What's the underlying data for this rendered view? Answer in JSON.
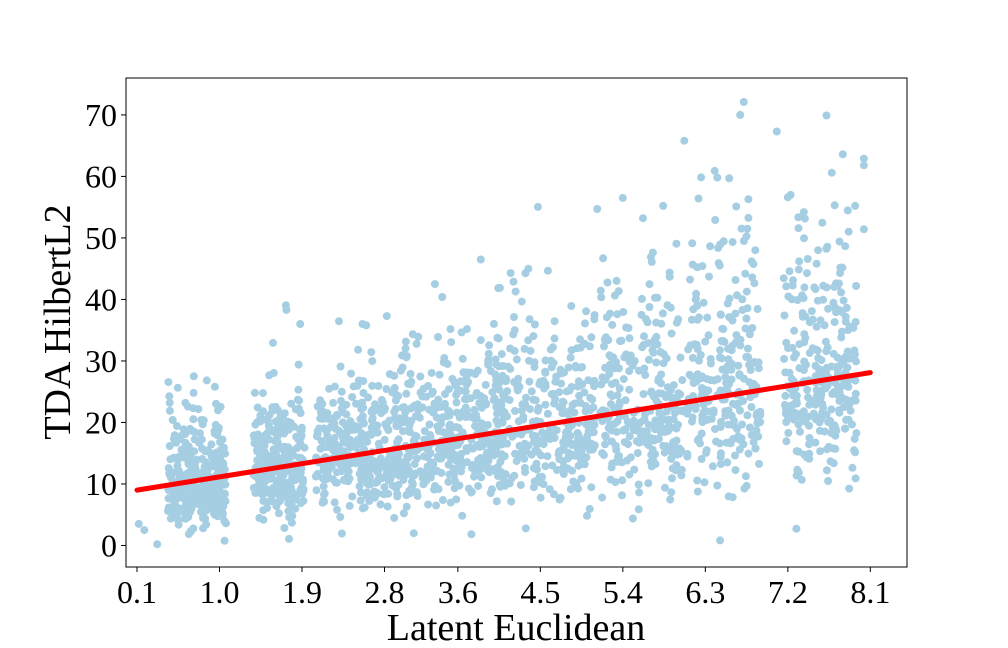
{
  "chart_data": {
    "type": "scatter",
    "title": "",
    "xlabel": "Latent Euclidean",
    "ylabel": "TDA HilbertL2",
    "xlim": [
      -0.02,
      8.5
    ],
    "ylim": [
      -3.5,
      76
    ],
    "x_ticks": [
      0.1,
      1.0,
      1.9,
      2.8,
      3.6,
      4.5,
      5.4,
      6.3,
      7.2,
      8.1
    ],
    "x_tick_labels": [
      "0.1",
      "1.0",
      "1.9",
      "2.8",
      "3.6",
      "4.5",
      "5.4",
      "6.3",
      "7.2",
      "8.1"
    ],
    "y_ticks": [
      0,
      10,
      20,
      30,
      40,
      50,
      60,
      70
    ],
    "y_tick_labels": [
      "0",
      "10",
      "20",
      "30",
      "40",
      "50",
      "60",
      "70"
    ],
    "grid": false,
    "legend": "none",
    "series": [
      {
        "kind": "scatter",
        "color": "#a6cee3",
        "clusters": [
          {
            "x_center": 0.75,
            "x_spread": 0.32,
            "y_mean": 10,
            "y_sd": 5,
            "count": 320
          },
          {
            "x_center": 1.65,
            "x_spread": 0.28,
            "y_mean": 13,
            "y_sd": 6,
            "count": 280
          },
          {
            "x_center": 2.55,
            "x_spread": 0.5,
            "y_mean": 15,
            "y_sd": 6,
            "count": 340
          },
          {
            "x_center": 3.55,
            "x_spread": 0.55,
            "y_mean": 17,
            "y_sd": 7,
            "count": 360
          },
          {
            "x_center": 4.55,
            "x_spread": 0.55,
            "y_mean": 19,
            "y_sd": 8,
            "count": 340
          },
          {
            "x_center": 5.6,
            "x_spread": 0.45,
            "y_mean": 22,
            "y_sd": 9,
            "count": 280
          },
          {
            "x_center": 6.5,
            "x_spread": 0.4,
            "y_mean": 25,
            "y_sd": 11,
            "count": 250
          },
          {
            "x_center": 7.55,
            "x_spread": 0.4,
            "y_mean": 27,
            "y_sd": 11,
            "count": 280
          }
        ],
        "outliers": [
          {
            "x": 6.72,
            "y": 72.1
          },
          {
            "x": 6.68,
            "y": 70.0
          },
          {
            "x": 7.08,
            "y": 67.3
          },
          {
            "x": 6.07,
            "y": 65.8
          },
          {
            "x": 7.8,
            "y": 63.6
          },
          {
            "x": 8.03,
            "y": 62.9
          },
          {
            "x": 8.03,
            "y": 61.8
          },
          {
            "x": 7.68,
            "y": 60.6
          },
          {
            "x": 6.43,
            "y": 59.8
          },
          {
            "x": 6.56,
            "y": 59.7
          },
          {
            "x": 7.23,
            "y": 57.0
          },
          {
            "x": 7.2,
            "y": 56.6
          },
          {
            "x": 5.4,
            "y": 56.5
          },
          {
            "x": 6.77,
            "y": 56.3
          },
          {
            "x": 5.84,
            "y": 55.2
          },
          {
            "x": 5.12,
            "y": 54.7
          },
          {
            "x": 8.03,
            "y": 51.4
          },
          {
            "x": 5.62,
            "y": 53.2
          },
          {
            "x": 4.37,
            "y": 45.0
          },
          {
            "x": 3.85,
            "y": 46.5
          },
          {
            "x": 3.35,
            "y": 42.5
          },
          {
            "x": 1.73,
            "y": 38.3
          },
          {
            "x": 2.56,
            "y": 36.0
          },
          {
            "x": 1.88,
            "y": 36.0
          },
          {
            "x": 0.12,
            "y": 3.5
          },
          {
            "x": 0.32,
            "y": 0.2
          },
          {
            "x": 0.18,
            "y": 2.5
          },
          {
            "x": 0.72,
            "y": 27.5
          },
          {
            "x": 0.95,
            "y": 25.8
          },
          {
            "x": 3.12,
            "y": 2.0
          }
        ]
      },
      {
        "kind": "line",
        "color": "#ff0000",
        "x": [
          0.1,
          8.1
        ],
        "y": [
          9.0,
          28.1
        ]
      }
    ]
  }
}
